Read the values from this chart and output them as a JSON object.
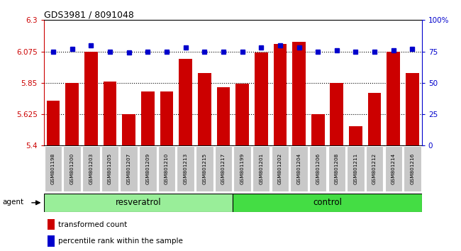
{
  "title": "GDS3981 / 8091048",
  "samples": [
    "GSM801198",
    "GSM801200",
    "GSM801203",
    "GSM801205",
    "GSM801207",
    "GSM801209",
    "GSM801210",
    "GSM801213",
    "GSM801215",
    "GSM801217",
    "GSM801199",
    "GSM801201",
    "GSM801202",
    "GSM801204",
    "GSM801206",
    "GSM801208",
    "GSM801211",
    "GSM801212",
    "GSM801214",
    "GSM801216"
  ],
  "bar_values": [
    5.72,
    5.85,
    6.075,
    5.86,
    5.625,
    5.79,
    5.79,
    6.02,
    5.92,
    5.82,
    5.845,
    6.07,
    6.13,
    6.145,
    5.625,
    5.85,
    5.54,
    5.78,
    6.075,
    5.92
  ],
  "percentile_values": [
    75,
    77,
    80,
    75,
    74,
    75,
    75,
    78,
    75,
    75,
    75,
    78,
    80,
    78,
    75,
    76,
    75,
    75,
    76,
    77
  ],
  "bar_color": "#cc0000",
  "percentile_color": "#0000cc",
  "ylim_left": [
    5.4,
    6.3
  ],
  "ylim_right": [
    0,
    100
  ],
  "yticks_left": [
    5.4,
    5.625,
    5.85,
    6.075,
    6.3
  ],
  "yticks_right": [
    0,
    25,
    50,
    75,
    100
  ],
  "ytick_labels_left": [
    "5.4",
    "5.625",
    "5.85",
    "6.075",
    "6.3"
  ],
  "ytick_labels_right": [
    "0",
    "25",
    "50",
    "75",
    "100%"
  ],
  "hlines": [
    5.625,
    5.85,
    6.075
  ],
  "resveratrol_samples": 10,
  "control_samples": 10,
  "group_label_resveratrol": "resveratrol",
  "group_label_control": "control",
  "agent_label": "agent",
  "legend_bar_label": "transformed count",
  "legend_percentile_label": "percentile rank within the sample",
  "left_axis_color": "#cc0000",
  "right_axis_color": "#0000cc",
  "bg_xticklabel": "#c8c8c8",
  "resveratrol_color": "#99ee99",
  "control_color": "#44dd44"
}
